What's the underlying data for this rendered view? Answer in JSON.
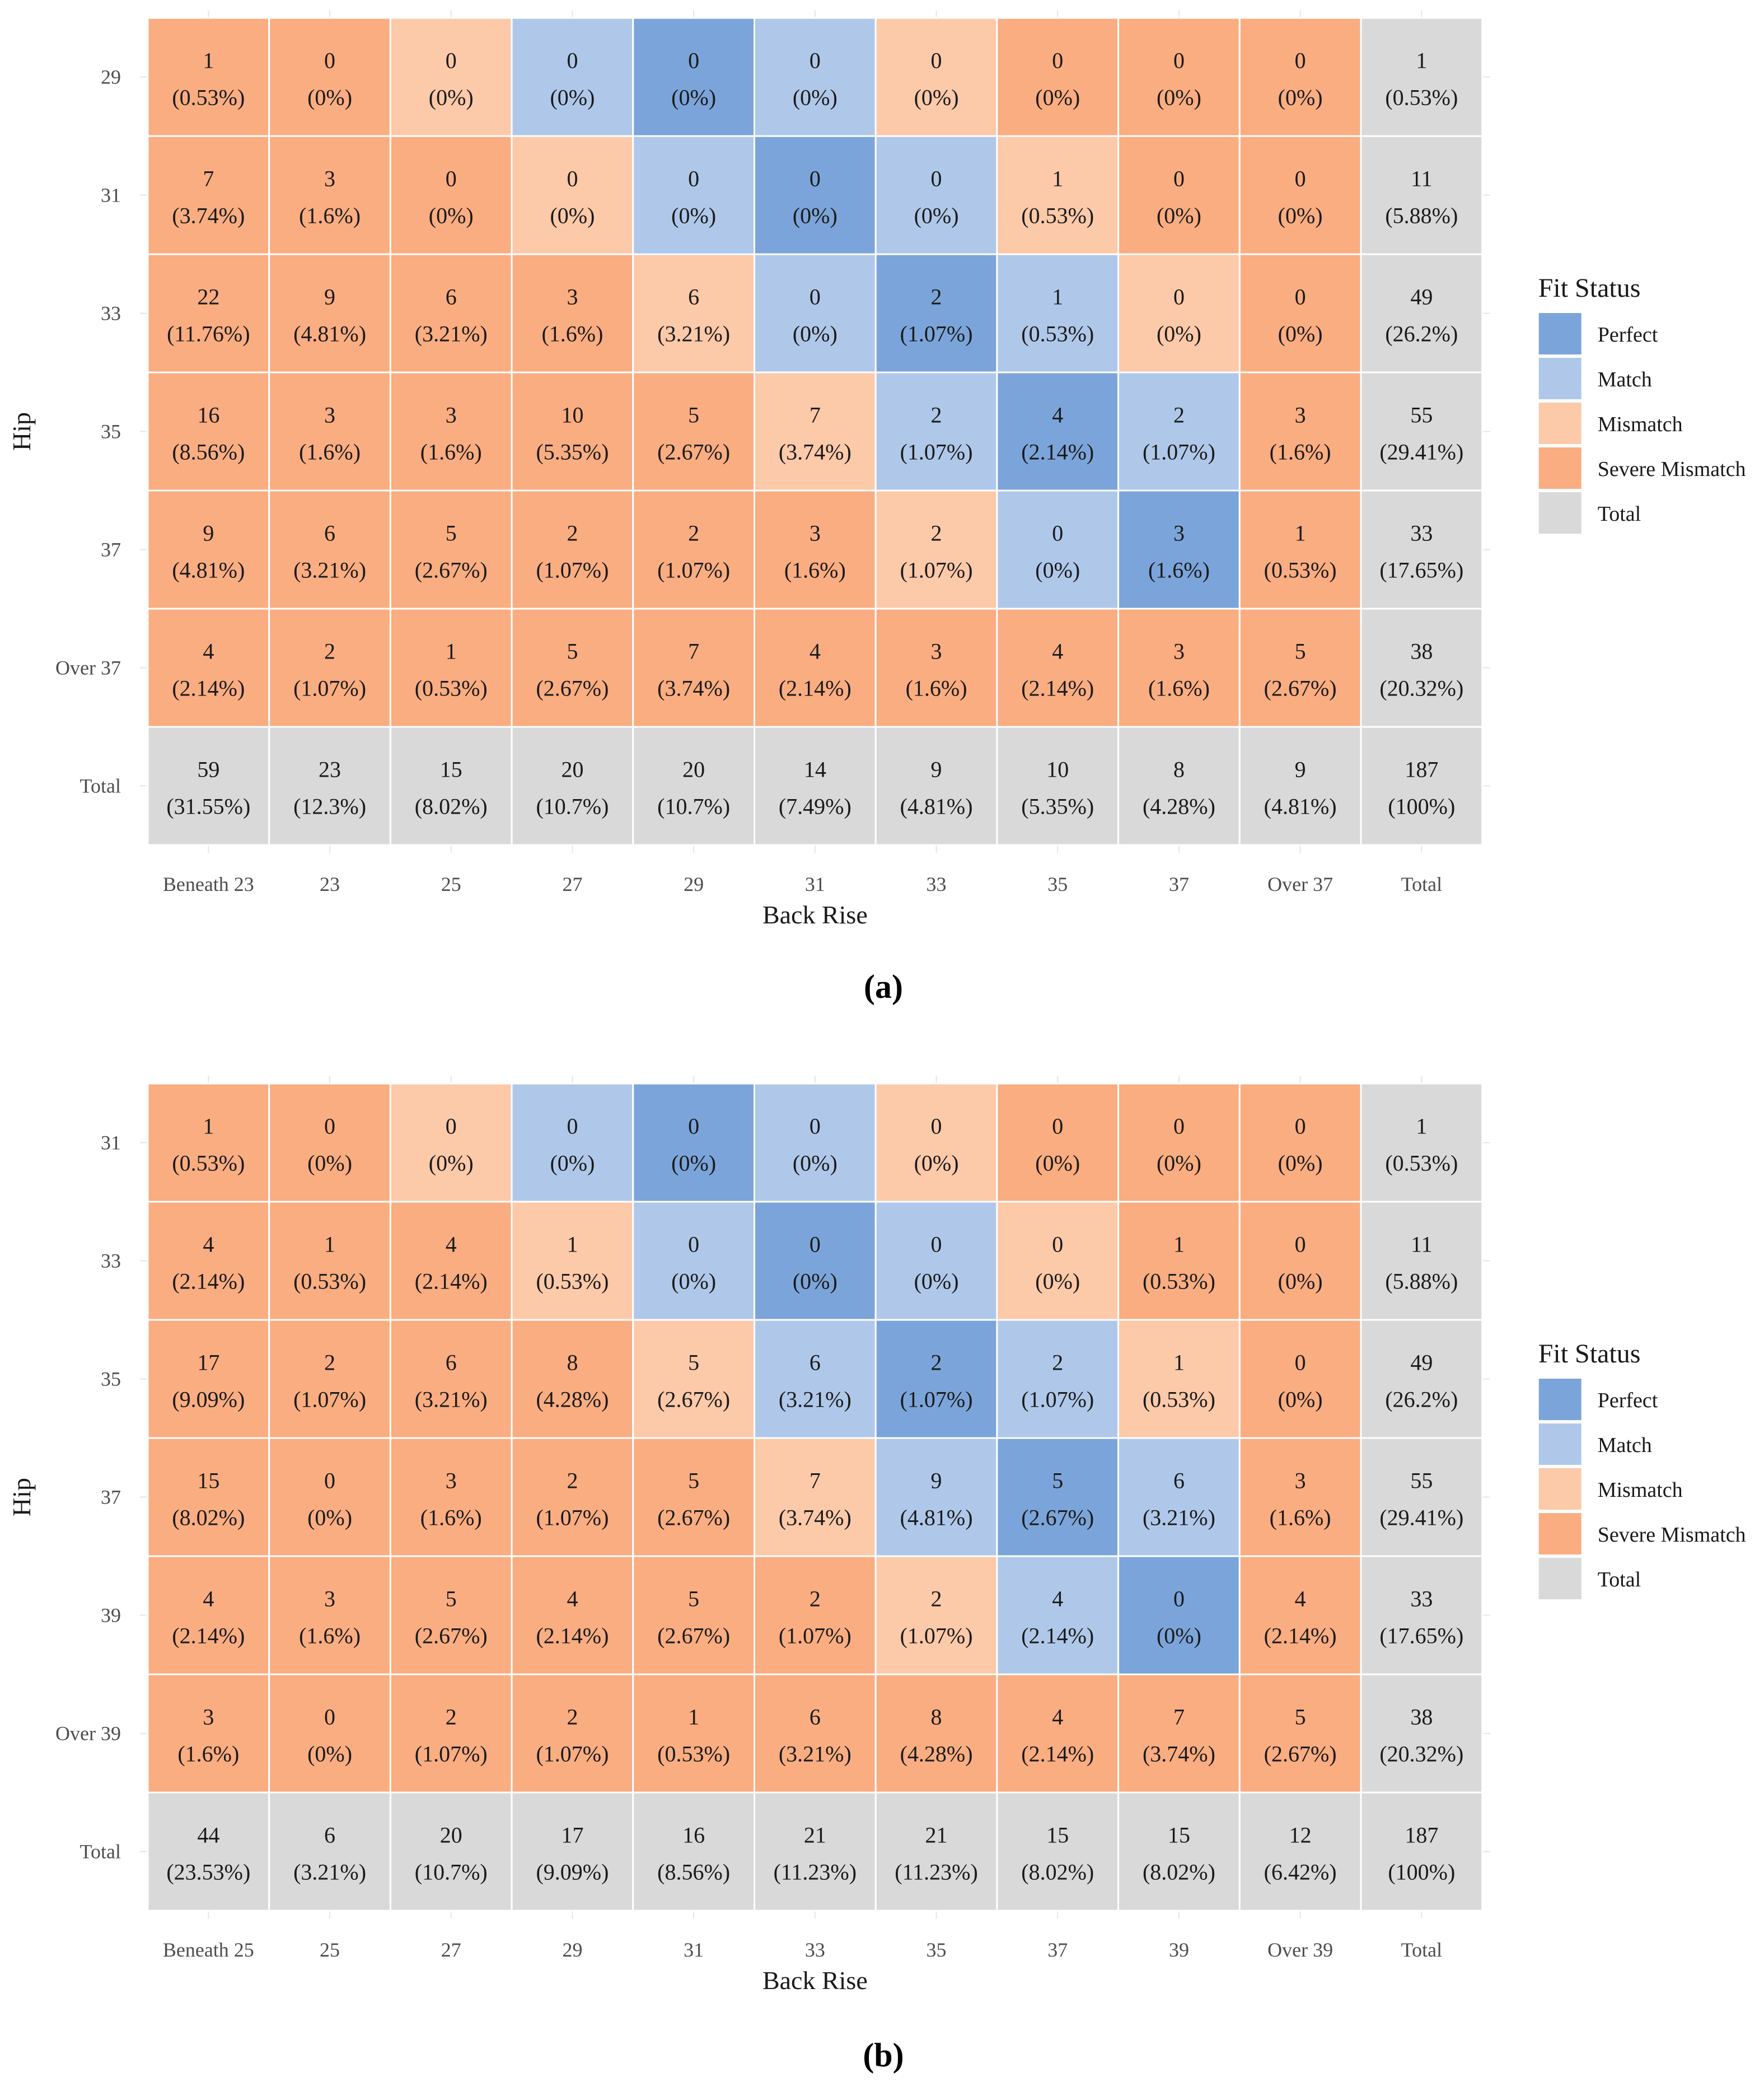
{
  "colors": {
    "Perfect": "#7ba5da",
    "Match": "#afc8ea",
    "Mismatch": "#fcc9a9",
    "Severe Mismatch": "#f9ad81",
    "Total": "#d9d9d9"
  },
  "chart_data": [
    {
      "type": "heatmap",
      "panel_label": "(a)",
      "xlabel": "Back Rise",
      "ylabel": "Hip",
      "x_categories": [
        "Beneath 23",
        "23",
        "25",
        "27",
        "29",
        "31",
        "33",
        "35",
        "37",
        "Over 37",
        "Total"
      ],
      "y_categories": [
        "29",
        "31",
        "33",
        "35",
        "37",
        "Over 37",
        "Total"
      ],
      "legend": {
        "title": "Fit Status",
        "entries": [
          "Perfect",
          "Match",
          "Mismatch",
          "Severe Mismatch",
          "Total"
        ]
      },
      "rows": [
        {
          "counts": [
            "1",
            "0",
            "0",
            "0",
            "0",
            "0",
            "0",
            "0",
            "0",
            "0",
            "1"
          ],
          "percents": [
            "(0.53%)",
            "(0%)",
            "(0%)",
            "(0%)",
            "(0%)",
            "(0%)",
            "(0%)",
            "(0%)",
            "(0%)",
            "(0%)",
            "(0.53%)"
          ],
          "status": [
            "Severe Mismatch",
            "Severe Mismatch",
            "Mismatch",
            "Match",
            "Perfect",
            "Match",
            "Mismatch",
            "Severe Mismatch",
            "Severe Mismatch",
            "Severe Mismatch",
            "Total"
          ]
        },
        {
          "counts": [
            "7",
            "3",
            "0",
            "0",
            "0",
            "0",
            "0",
            "1",
            "0",
            "0",
            "11"
          ],
          "percents": [
            "(3.74%)",
            "(1.6%)",
            "(0%)",
            "(0%)",
            "(0%)",
            "(0%)",
            "(0%)",
            "(0.53%)",
            "(0%)",
            "(0%)",
            "(5.88%)"
          ],
          "status": [
            "Severe Mismatch",
            "Severe Mismatch",
            "Severe Mismatch",
            "Mismatch",
            "Match",
            "Perfect",
            "Match",
            "Mismatch",
            "Severe Mismatch",
            "Severe Mismatch",
            "Total"
          ]
        },
        {
          "counts": [
            "22",
            "9",
            "6",
            "3",
            "6",
            "0",
            "2",
            "1",
            "0",
            "0",
            "49"
          ],
          "percents": [
            "(11.76%)",
            "(4.81%)",
            "(3.21%)",
            "(1.6%)",
            "(3.21%)",
            "(0%)",
            "(1.07%)",
            "(0.53%)",
            "(0%)",
            "(0%)",
            "(26.2%)"
          ],
          "status": [
            "Severe Mismatch",
            "Severe Mismatch",
            "Severe Mismatch",
            "Severe Mismatch",
            "Mismatch",
            "Match",
            "Perfect",
            "Match",
            "Mismatch",
            "Severe Mismatch",
            "Total"
          ]
        },
        {
          "counts": [
            "16",
            "3",
            "3",
            "10",
            "5",
            "7",
            "2",
            "4",
            "2",
            "3",
            "55"
          ],
          "percents": [
            "(8.56%)",
            "(1.6%)",
            "(1.6%)",
            "(5.35%)",
            "(2.67%)",
            "(3.74%)",
            "(1.07%)",
            "(2.14%)",
            "(1.07%)",
            "(1.6%)",
            "(29.41%)"
          ],
          "status": [
            "Severe Mismatch",
            "Severe Mismatch",
            "Severe Mismatch",
            "Severe Mismatch",
            "Severe Mismatch",
            "Mismatch",
            "Match",
            "Perfect",
            "Match",
            "Severe Mismatch",
            "Total"
          ]
        },
        {
          "counts": [
            "9",
            "6",
            "5",
            "2",
            "2",
            "3",
            "2",
            "0",
            "3",
            "1",
            "33"
          ],
          "percents": [
            "(4.81%)",
            "(3.21%)",
            "(2.67%)",
            "(1.07%)",
            "(1.07%)",
            "(1.6%)",
            "(1.07%)",
            "(0%)",
            "(1.6%)",
            "(0.53%)",
            "(17.65%)"
          ],
          "status": [
            "Severe Mismatch",
            "Severe Mismatch",
            "Severe Mismatch",
            "Severe Mismatch",
            "Severe Mismatch",
            "Severe Mismatch",
            "Mismatch",
            "Match",
            "Perfect",
            "Severe Mismatch",
            "Total"
          ]
        },
        {
          "counts": [
            "4",
            "2",
            "1",
            "5",
            "7",
            "4",
            "3",
            "4",
            "3",
            "5",
            "38"
          ],
          "percents": [
            "(2.14%)",
            "(1.07%)",
            "(0.53%)",
            "(2.67%)",
            "(3.74%)",
            "(2.14%)",
            "(1.6%)",
            "(2.14%)",
            "(1.6%)",
            "(2.67%)",
            "(20.32%)"
          ],
          "status": [
            "Severe Mismatch",
            "Severe Mismatch",
            "Severe Mismatch",
            "Severe Mismatch",
            "Severe Mismatch",
            "Severe Mismatch",
            "Severe Mismatch",
            "Severe Mismatch",
            "Severe Mismatch",
            "Severe Mismatch",
            "Total"
          ]
        },
        {
          "counts": [
            "59",
            "23",
            "15",
            "20",
            "20",
            "14",
            "9",
            "10",
            "8",
            "9",
            "187"
          ],
          "percents": [
            "(31.55%)",
            "(12.3%)",
            "(8.02%)",
            "(10.7%)",
            "(10.7%)",
            "(7.49%)",
            "(4.81%)",
            "(5.35%)",
            "(4.28%)",
            "(4.81%)",
            "(100%)"
          ],
          "status": [
            "Total",
            "Total",
            "Total",
            "Total",
            "Total",
            "Total",
            "Total",
            "Total",
            "Total",
            "Total",
            "Total"
          ]
        }
      ]
    },
    {
      "type": "heatmap",
      "panel_label": "(b)",
      "xlabel": "Back Rise",
      "ylabel": "Hip",
      "x_categories": [
        "Beneath 25",
        "25",
        "27",
        "29",
        "31",
        "33",
        "35",
        "37",
        "39",
        "Over 39",
        "Total"
      ],
      "y_categories": [
        "31",
        "33",
        "35",
        "37",
        "39",
        "Over 39",
        "Total"
      ],
      "legend": {
        "title": "Fit Status",
        "entries": [
          "Perfect",
          "Match",
          "Mismatch",
          "Severe Mismatch",
          "Total"
        ]
      },
      "rows": [
        {
          "counts": [
            "1",
            "0",
            "0",
            "0",
            "0",
            "0",
            "0",
            "0",
            "0",
            "0",
            "1"
          ],
          "percents": [
            "(0.53%)",
            "(0%)",
            "(0%)",
            "(0%)",
            "(0%)",
            "(0%)",
            "(0%)",
            "(0%)",
            "(0%)",
            "(0%)",
            "(0.53%)"
          ],
          "status": [
            "Severe Mismatch",
            "Severe Mismatch",
            "Mismatch",
            "Match",
            "Perfect",
            "Match",
            "Mismatch",
            "Severe Mismatch",
            "Severe Mismatch",
            "Severe Mismatch",
            "Total"
          ]
        },
        {
          "counts": [
            "4",
            "1",
            "4",
            "1",
            "0",
            "0",
            "0",
            "0",
            "1",
            "0",
            "11"
          ],
          "percents": [
            "(2.14%)",
            "(0.53%)",
            "(2.14%)",
            "(0.53%)",
            "(0%)",
            "(0%)",
            "(0%)",
            "(0%)",
            "(0.53%)",
            "(0%)",
            "(5.88%)"
          ],
          "status": [
            "Severe Mismatch",
            "Severe Mismatch",
            "Severe Mismatch",
            "Mismatch",
            "Match",
            "Perfect",
            "Match",
            "Mismatch",
            "Severe Mismatch",
            "Severe Mismatch",
            "Total"
          ]
        },
        {
          "counts": [
            "17",
            "2",
            "6",
            "8",
            "5",
            "6",
            "2",
            "2",
            "1",
            "0",
            "49"
          ],
          "percents": [
            "(9.09%)",
            "(1.07%)",
            "(3.21%)",
            "(4.28%)",
            "(2.67%)",
            "(3.21%)",
            "(1.07%)",
            "(1.07%)",
            "(0.53%)",
            "(0%)",
            "(26.2%)"
          ],
          "status": [
            "Severe Mismatch",
            "Severe Mismatch",
            "Severe Mismatch",
            "Severe Mismatch",
            "Mismatch",
            "Match",
            "Perfect",
            "Match",
            "Mismatch",
            "Severe Mismatch",
            "Total"
          ]
        },
        {
          "counts": [
            "15",
            "0",
            "3",
            "2",
            "5",
            "7",
            "9",
            "5",
            "6",
            "3",
            "55"
          ],
          "percents": [
            "(8.02%)",
            "(0%)",
            "(1.6%)",
            "(1.07%)",
            "(2.67%)",
            "(3.74%)",
            "(4.81%)",
            "(2.67%)",
            "(3.21%)",
            "(1.6%)",
            "(29.41%)"
          ],
          "status": [
            "Severe Mismatch",
            "Severe Mismatch",
            "Severe Mismatch",
            "Severe Mismatch",
            "Severe Mismatch",
            "Mismatch",
            "Match",
            "Perfect",
            "Match",
            "Severe Mismatch",
            "Total"
          ]
        },
        {
          "counts": [
            "4",
            "3",
            "5",
            "4",
            "5",
            "2",
            "2",
            "4",
            "0",
            "4",
            "33"
          ],
          "percents": [
            "(2.14%)",
            "(1.6%)",
            "(2.67%)",
            "(2.14%)",
            "(2.67%)",
            "(1.07%)",
            "(1.07%)",
            "(2.14%)",
            "(0%)",
            "(2.14%)",
            "(17.65%)"
          ],
          "status": [
            "Severe Mismatch",
            "Severe Mismatch",
            "Severe Mismatch",
            "Severe Mismatch",
            "Severe Mismatch",
            "Severe Mismatch",
            "Mismatch",
            "Match",
            "Perfect",
            "Severe Mismatch",
            "Total"
          ]
        },
        {
          "counts": [
            "3",
            "0",
            "2",
            "2",
            "1",
            "6",
            "8",
            "4",
            "7",
            "5",
            "38"
          ],
          "percents": [
            "(1.6%)",
            "(0%)",
            "(1.07%)",
            "(1.07%)",
            "(0.53%)",
            "(3.21%)",
            "(4.28%)",
            "(2.14%)",
            "(3.74%)",
            "(2.67%)",
            "(20.32%)"
          ],
          "status": [
            "Severe Mismatch",
            "Severe Mismatch",
            "Severe Mismatch",
            "Severe Mismatch",
            "Severe Mismatch",
            "Severe Mismatch",
            "Severe Mismatch",
            "Severe Mismatch",
            "Severe Mismatch",
            "Severe Mismatch",
            "Total"
          ]
        },
        {
          "counts": [
            "44",
            "6",
            "20",
            "17",
            "16",
            "21",
            "21",
            "15",
            "15",
            "12",
            "187"
          ],
          "percents": [
            "(23.53%)",
            "(3.21%)",
            "(10.7%)",
            "(9.09%)",
            "(8.56%)",
            "(11.23%)",
            "(11.23%)",
            "(8.02%)",
            "(8.02%)",
            "(6.42%)",
            "(100%)"
          ],
          "status": [
            "Total",
            "Total",
            "Total",
            "Total",
            "Total",
            "Total",
            "Total",
            "Total",
            "Total",
            "Total",
            "Total"
          ]
        }
      ]
    }
  ]
}
